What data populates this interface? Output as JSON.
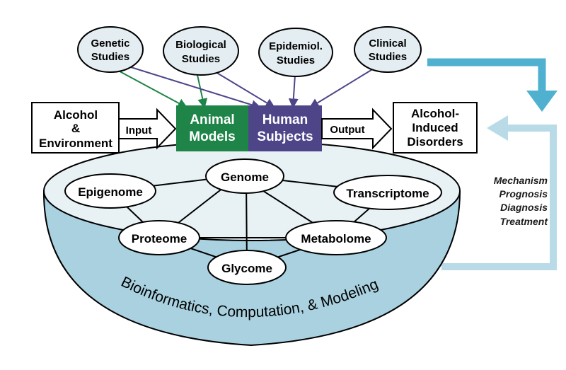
{
  "studies": {
    "genetic": [
      "Genetic",
      "Studies"
    ],
    "biological": [
      "Biological",
      "Studies"
    ],
    "epidemiological": [
      "Epidemiol.",
      "Studies"
    ],
    "clinical": [
      "Clinical",
      "Studies"
    ]
  },
  "input_box": [
    "Alcohol",
    "&",
    "Environment"
  ],
  "input_arrow_label": "Input",
  "animal_models": [
    "Animal",
    "Models"
  ],
  "human_subjects": [
    "Human",
    "Subjects"
  ],
  "output_arrow_label": "Output",
  "output_box": [
    "Alcohol-",
    "Induced",
    "Disorders"
  ],
  "omics": {
    "genome": "Genome",
    "epigenome": "Epigenome",
    "transcriptome": "Transcriptome",
    "proteome": "Proteome",
    "metabolome": "Metabolome",
    "glycome": "Glycome"
  },
  "bowl_label": "Bioinformatics, Computation, & Modeling",
  "applications": [
    "Mechanism",
    "Prognosis",
    "Diagnosis",
    "Treatment"
  ],
  "colors": {
    "animal_green": "#1e8447",
    "human_purple": "#4e4589",
    "feedback_blue": "#4fb1cf",
    "feedback_light": "#b9dbe8",
    "bowl_fill": "#e8f2f5",
    "bowl_rim": "#a9d1e0",
    "green_arrow": "#1e8447",
    "purple_arrow": "#4e4589"
  }
}
